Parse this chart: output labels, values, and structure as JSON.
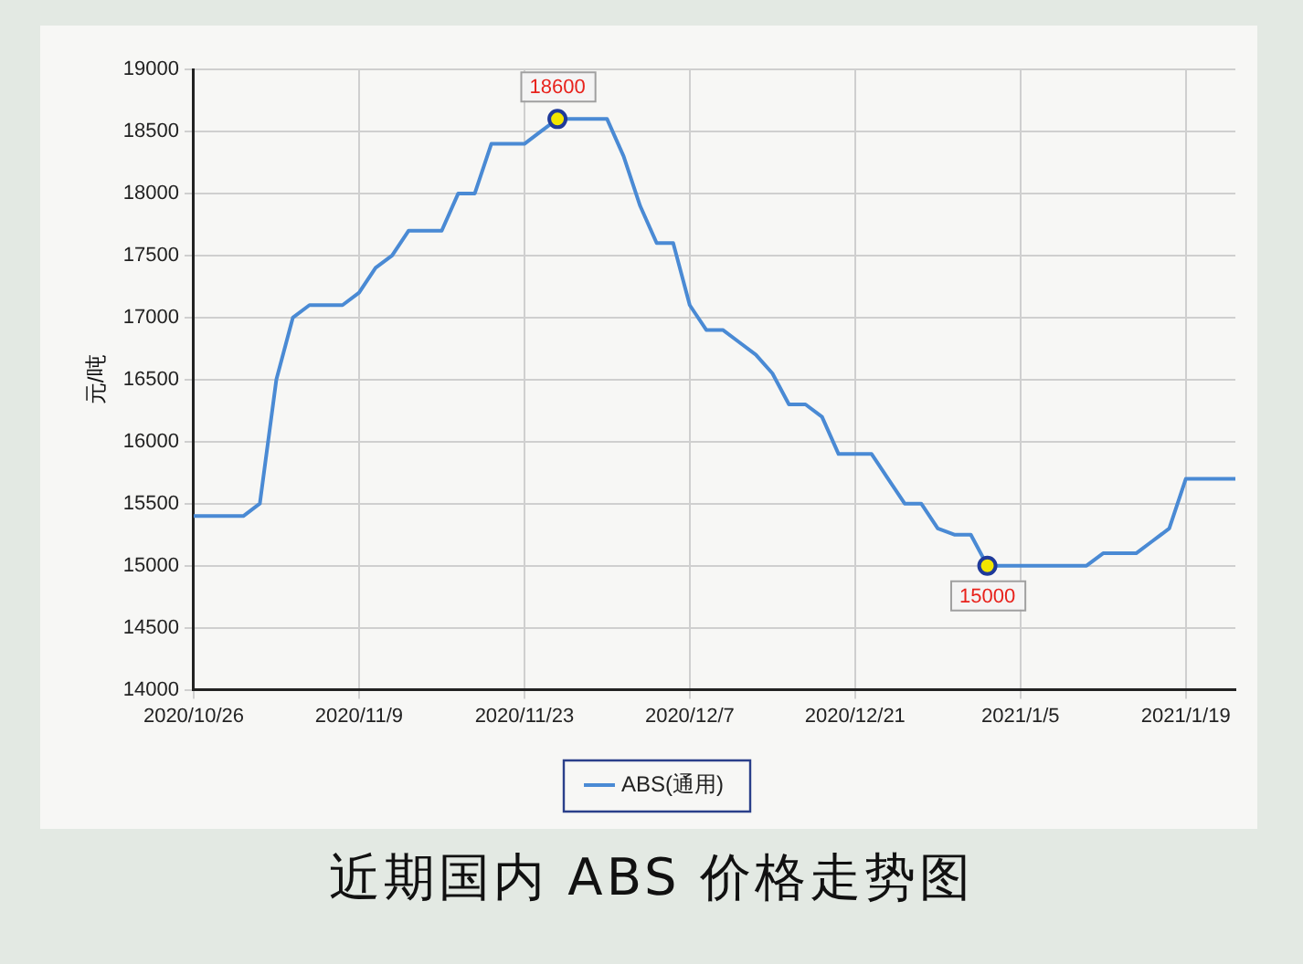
{
  "chart_data": {
    "type": "line",
    "title": "近期国内 ABS 价格走势图",
    "ylabel": "元/吨",
    "categories": [
      "2020/10/26",
      null,
      null,
      null,
      null,
      null,
      null,
      null,
      null,
      null,
      "2020/11/9",
      null,
      null,
      null,
      null,
      null,
      null,
      null,
      null,
      null,
      "2020/11/23",
      null,
      null,
      null,
      null,
      null,
      null,
      null,
      null,
      null,
      "2020/12/7",
      null,
      null,
      null,
      null,
      null,
      null,
      null,
      null,
      null,
      "2020/12/21",
      null,
      null,
      null,
      null,
      null,
      null,
      null,
      null,
      null,
      "2021/1/5",
      null,
      null,
      null,
      null,
      null,
      null,
      null,
      null,
      null,
      "2021/1/19",
      null,
      null,
      null
    ],
    "series": [
      {
        "name": "ABS(通用)",
        "color": "#4a8ad4",
        "values": [
          15400,
          15400,
          15400,
          15400,
          15500,
          16500,
          17000,
          17100,
          17100,
          17100,
          17200,
          17400,
          17500,
          17700,
          17700,
          17700,
          18000,
          18000,
          18400,
          18400,
          18400,
          18500,
          18600,
          18600,
          18600,
          18600,
          18300,
          17900,
          17600,
          17600,
          17100,
          16900,
          16900,
          16800,
          16700,
          16550,
          16300,
          16300,
          16200,
          15900,
          15900,
          15900,
          15700,
          15500,
          15500,
          15300,
          15250,
          15250,
          15000,
          15000,
          15000,
          15000,
          15000,
          15000,
          15000,
          15100,
          15100,
          15100,
          15200,
          15300,
          15700,
          15700,
          15700,
          15700
        ],
        "value_labels": [
          null,
          null,
          null,
          null,
          null,
          null,
          null,
          null,
          null,
          null,
          null,
          null,
          null,
          null,
          null,
          null,
          null,
          null,
          null,
          null,
          null,
          null,
          "18600",
          null,
          null,
          null,
          null,
          null,
          null,
          null,
          null,
          null,
          null,
          null,
          null,
          null,
          null,
          null,
          null,
          null,
          null,
          null,
          null,
          null,
          null,
          null,
          null,
          null,
          "15000",
          null,
          null,
          null,
          null,
          null,
          null,
          null,
          null,
          null,
          null,
          null,
          null,
          null,
          null,
          null
        ]
      }
    ],
    "ylim": [
      14000,
      19000
    ],
    "yticks": [
      14000,
      14500,
      15000,
      15500,
      16000,
      16500,
      17000,
      17500,
      18000,
      18500,
      19000
    ],
    "grid": true,
    "legend": "bottom"
  }
}
